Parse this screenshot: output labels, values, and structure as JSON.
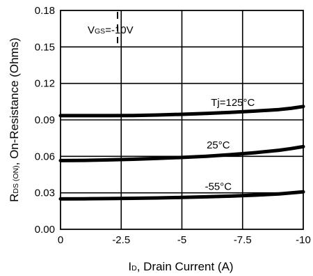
{
  "chart_data": {
    "type": "line",
    "xlabel": {
      "main": "I",
      "sub": "D",
      "rest": ", Drain Current (A)"
    },
    "ylabel": {
      "main": "R",
      "sub": "DS (ON)",
      "rest": ", On-Resistance (Ohms)"
    },
    "xlim": [
      0,
      -10
    ],
    "ylim": [
      0,
      0.18
    ],
    "x_ticks": [
      0,
      -2.5,
      -5,
      -7.5,
      -10
    ],
    "x_tick_labels": [
      "0",
      "-2.5",
      "-5",
      "-7.5",
      "-10"
    ],
    "y_ticks": [
      0,
      0.03,
      0.06,
      0.09,
      0.12,
      0.15,
      0.18
    ],
    "y_tick_labels": [
      "0.00",
      "0.03",
      "0.06",
      "0.09",
      "0.12",
      "0.15",
      "0.18"
    ],
    "grid": true,
    "annotation": {
      "main": "V",
      "sub": "GS",
      "rest": "=-10V"
    },
    "series": [
      {
        "name": "Tj=125°C",
        "x": [
          0,
          -1,
          -2,
          -3,
          -4,
          -5,
          -6,
          -7,
          -8,
          -9,
          -9.5,
          -10
        ],
        "y": [
          0.0935,
          0.0935,
          0.0935,
          0.0936,
          0.094,
          0.0946,
          0.0953,
          0.0962,
          0.0972,
          0.0985,
          0.0995,
          0.101
        ]
      },
      {
        "name": "25°C",
        "x": [
          0,
          -1,
          -2,
          -3,
          -4,
          -5,
          -6,
          -7,
          -8,
          -9,
          -9.5,
          -10
        ],
        "y": [
          0.0565,
          0.0567,
          0.0571,
          0.0576,
          0.0583,
          0.0591,
          0.0601,
          0.0614,
          0.063,
          0.065,
          0.0664,
          0.068
        ]
      },
      {
        "name": "-55°C",
        "x": [
          0,
          -1,
          -2,
          -3,
          -4,
          -5,
          -6,
          -7,
          -8,
          -9,
          -9.5,
          -10
        ],
        "y": [
          0.025,
          0.0251,
          0.0253,
          0.0255,
          0.0258,
          0.0262,
          0.0267,
          0.0273,
          0.0281,
          0.0291,
          0.0299,
          0.0308
        ]
      }
    ]
  }
}
